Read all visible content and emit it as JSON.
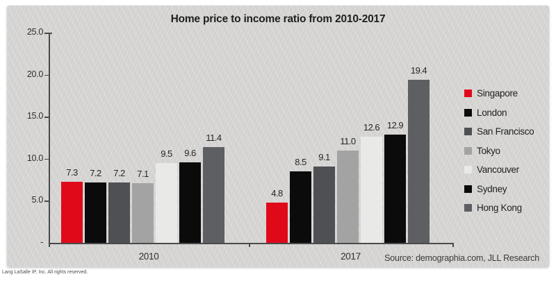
{
  "chart": {
    "title": "Home price to income ratio from 2010-2017",
    "source": "Source: demographia.com, JLL Research",
    "copyright": "Lang LaSalle IP, Inc. All rights reserved."
  },
  "chart_data": {
    "type": "bar",
    "title": "Home price to income ratio from 2010-2017",
    "categories": [
      "2010",
      "2017"
    ],
    "series": [
      {
        "name": "Singapore",
        "color": "#e0091a",
        "values": [
          7.3,
          4.8
        ]
      },
      {
        "name": "London",
        "color": "#0b0b0b",
        "values": [
          7.2,
          8.5
        ]
      },
      {
        "name": "San Francisco",
        "color": "#4f5054",
        "values": [
          7.2,
          9.1
        ]
      },
      {
        "name": "Tokyo",
        "color": "#a3a3a3",
        "values": [
          7.1,
          11.0
        ]
      },
      {
        "name": "Vancouver",
        "color": "#e9e9e7",
        "values": [
          9.5,
          12.6
        ]
      },
      {
        "name": "Sydney",
        "color": "#0b0b0b",
        "values": [
          9.6,
          12.9
        ]
      },
      {
        "name": "Hong Kong",
        "color": "#5d5f62",
        "values": [
          11.4,
          19.4
        ]
      }
    ],
    "ylim": [
      0,
      25
    ],
    "y_ticks": [
      25,
      20,
      15,
      10,
      5,
      0
    ],
    "zero_tick_label": "-",
    "value_labels": true,
    "value_label_format": "one-decimal",
    "legend_position": "right",
    "grid": false
  }
}
